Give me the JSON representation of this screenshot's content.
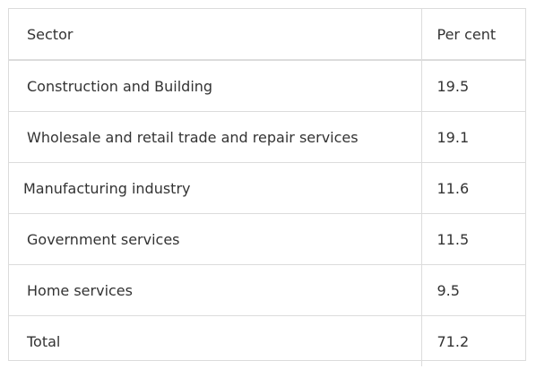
{
  "table": {
    "headers": {
      "sector": "Sector",
      "percent": "Per cent"
    },
    "rows": [
      {
        "sector": "Construction and Building",
        "percent": "19.5"
      },
      {
        "sector": "Wholesale and retail trade and repair services",
        "percent": "19.1"
      },
      {
        "sector": "Manufacturing industry",
        "percent": "11.6"
      },
      {
        "sector": "Government services",
        "percent": "11.5"
      },
      {
        "sector": "Home services",
        "percent": "9.5"
      },
      {
        "sector": "Total",
        "percent": "71.2"
      }
    ]
  }
}
